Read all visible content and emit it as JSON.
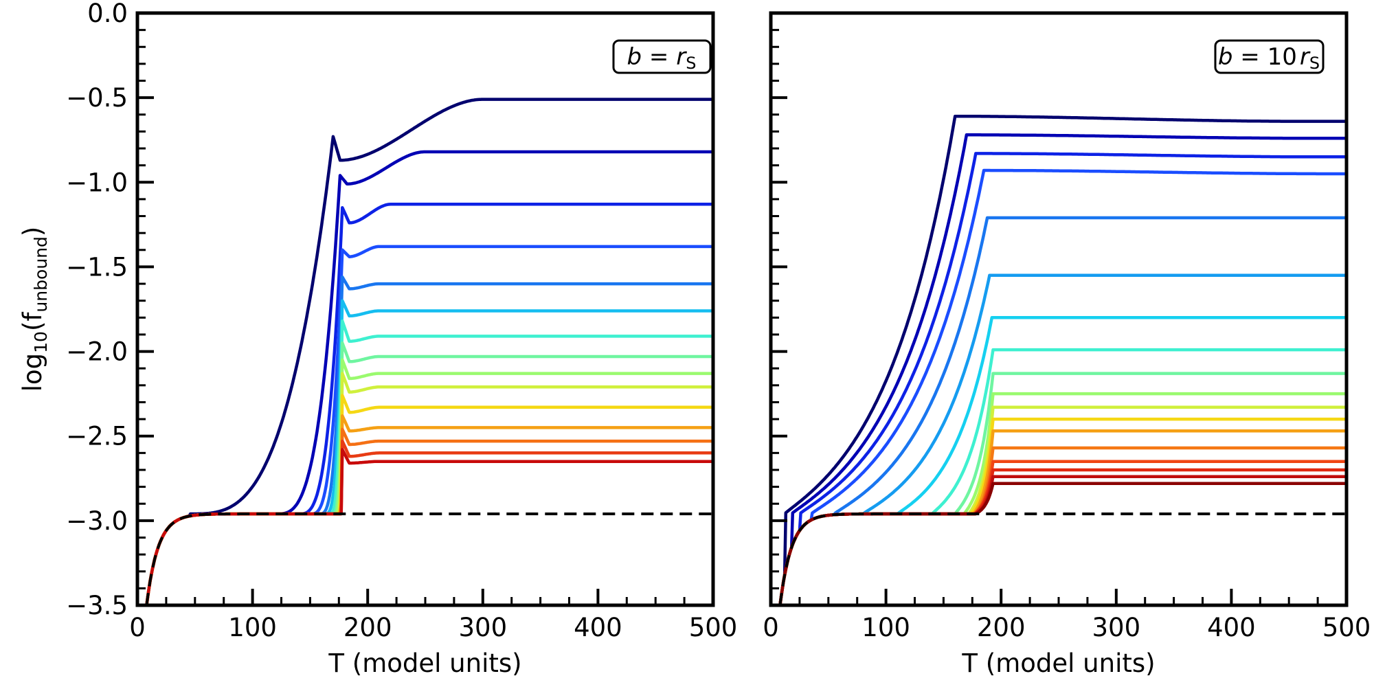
{
  "chart_data": [
    {
      "type": "line",
      "panel": "left",
      "annotation": {
        "var": "b",
        "eq": " = ",
        "coef": "",
        "sym": "r",
        "sub": "S"
      },
      "xlabel": "T (model units)",
      "ylabel": {
        "pre": "log",
        "sub1": "10",
        "mid": "(f",
        "sub2": "unbound",
        "post": ")"
      },
      "xlim": [
        0,
        500
      ],
      "ylim": [
        -3.5,
        0.0
      ],
      "xticks": [
        "0",
        "100",
        "200",
        "300",
        "400",
        "500"
      ],
      "yticks": [
        "0.0",
        "−0.5",
        "−1.0",
        "−1.5",
        "−2.0",
        "−2.5",
        "−3.0",
        "−3.5"
      ],
      "reference": {
        "name": "baseline",
        "style": "dashed",
        "color": "#000000",
        "plateau": -2.96,
        "x": [
          0,
          500
        ]
      },
      "common_rise": {
        "x0": 8,
        "y0": -3.5,
        "tau": 10
      },
      "transition_x": 178,
      "series": [
        {
          "color": "#00006e",
          "final": -0.51,
          "t0": 45,
          "peak_x": 170,
          "peak": -0.73,
          "dip": -0.87,
          "settle": 300
        },
        {
          "color": "#0000b4",
          "final": -0.82,
          "t0": 120,
          "peak_x": 176,
          "peak": -0.96,
          "dip": -1.01,
          "settle": 250
        },
        {
          "color": "#0d22e6",
          "final": -1.13,
          "t0": 140,
          "peak_x": 178,
          "peak": -1.15,
          "dip": -1.24,
          "settle": 220
        },
        {
          "color": "#1a4dff",
          "final": -1.38,
          "t0": 150,
          "peak_x": 178,
          "peak": -1.4,
          "dip": -1.44,
          "settle": 210
        },
        {
          "color": "#1976f0",
          "final": -1.6,
          "t0": 158,
          "peak_x": 178,
          "peak": -1.56,
          "dip": -1.63,
          "settle": 210
        },
        {
          "color": "#15bdf0",
          "final": -1.76,
          "t0": 163,
          "peak_x": 178,
          "peak": -1.7,
          "dip": -1.79,
          "settle": 210
        },
        {
          "color": "#3ef0d0",
          "final": -1.91,
          "t0": 167,
          "peak_x": 178,
          "peak": -1.82,
          "dip": -1.94,
          "settle": 210
        },
        {
          "color": "#6ff5a0",
          "final": -2.03,
          "t0": 170,
          "peak_x": 178,
          "peak": -1.95,
          "dip": -2.06,
          "settle": 210
        },
        {
          "color": "#9afa6e",
          "final": -2.13,
          "t0": 172,
          "peak_x": 178,
          "peak": -2.05,
          "dip": -2.16,
          "settle": 210
        },
        {
          "color": "#d0f03c",
          "final": -2.21,
          "t0": 174,
          "peak_x": 178,
          "peak": -2.13,
          "dip": -2.24,
          "settle": 210
        },
        {
          "color": "#f5d814",
          "final": -2.33,
          "t0": 175,
          "peak_x": 178,
          "peak": -2.26,
          "dip": -2.36,
          "settle": 210
        },
        {
          "color": "#f5a014",
          "final": -2.45,
          "t0": 176,
          "peak_x": 178,
          "peak": -2.38,
          "dip": -2.47,
          "settle": 210
        },
        {
          "color": "#f57014",
          "final": -2.53,
          "t0": 176,
          "peak_x": 178,
          "peak": -2.46,
          "dip": -2.55,
          "settle": 210
        },
        {
          "color": "#e83c14",
          "final": -2.6,
          "t0": 177,
          "peak_x": 178,
          "peak": -2.53,
          "dip": -2.62,
          "settle": 210
        },
        {
          "color": "#c80a0a",
          "final": -2.65,
          "t0": 177,
          "peak_x": 178,
          "peak": -2.58,
          "dip": -2.66,
          "settle": 210
        }
      ]
    },
    {
      "type": "line",
      "panel": "right",
      "annotation": {
        "var": "b",
        "eq": " = ",
        "coef": "10",
        "sym": "r",
        "sub": "S"
      },
      "xlabel": "T (model units)",
      "xlim": [
        0,
        500
      ],
      "ylim": [
        -3.5,
        0.0
      ],
      "xticks": [
        "0",
        "100",
        "200",
        "300",
        "400",
        "500"
      ],
      "reference": {
        "name": "baseline",
        "style": "dashed",
        "color": "#000000",
        "plateau": -2.96,
        "x": [
          0,
          500
        ]
      },
      "common_rise": {
        "x0": 8,
        "y0": -3.5,
        "tau": 10
      },
      "transition_x": 178,
      "series": [
        {
          "color": "#00006e",
          "t0": 12,
          "knee_x": 160,
          "knee": -0.61,
          "final": -0.64
        },
        {
          "color": "#0000b4",
          "t0": 18,
          "knee_x": 170,
          "knee": -0.72,
          "final": -0.74
        },
        {
          "color": "#0d22e6",
          "t0": 25,
          "knee_x": 178,
          "knee": -0.83,
          "final": -0.85
        },
        {
          "color": "#1a4dff",
          "t0": 35,
          "knee_x": 185,
          "knee": -0.93,
          "final": -0.95
        },
        {
          "color": "#1976f0",
          "t0": 55,
          "knee_x": 188,
          "knee": -1.21,
          "final": -1.21
        },
        {
          "color": "#159cf0",
          "t0": 80,
          "knee_x": 190,
          "knee": -1.55,
          "final": -1.55
        },
        {
          "color": "#15d0f0",
          "t0": 110,
          "knee_x": 192,
          "knee": -1.8,
          "final": -1.8
        },
        {
          "color": "#3ef0d0",
          "t0": 140,
          "knee_x": 193,
          "knee": -1.99,
          "final": -1.99
        },
        {
          "color": "#6ff5a0",
          "t0": 160,
          "knee_x": 193,
          "knee": -2.13,
          "final": -2.13
        },
        {
          "color": "#9afa6e",
          "t0": 168,
          "knee_x": 193,
          "knee": -2.25,
          "final": -2.25
        },
        {
          "color": "#d0f03c",
          "t0": 172,
          "knee_x": 193,
          "knee": -2.33,
          "final": -2.33
        },
        {
          "color": "#f5d814",
          "t0": 174,
          "knee_x": 193,
          "knee": -2.4,
          "final": -2.4
        },
        {
          "color": "#f5a014",
          "t0": 176,
          "knee_x": 193,
          "knee": -2.47,
          "final": -2.47
        },
        {
          "color": "#f57814",
          "t0": 177,
          "knee_x": 193,
          "knee": -2.57,
          "final": -2.57
        },
        {
          "color": "#f04614",
          "t0": 177,
          "knee_x": 193,
          "knee": -2.65,
          "final": -2.65
        },
        {
          "color": "#e02810",
          "t0": 177,
          "knee_x": 193,
          "knee": -2.7,
          "final": -2.7
        },
        {
          "color": "#c00c0c",
          "t0": 178,
          "knee_x": 193,
          "knee": -2.74,
          "final": -2.74
        },
        {
          "color": "#8a0000",
          "t0": 178,
          "knee_x": 193,
          "knee": -2.78,
          "final": -2.78
        }
      ]
    }
  ]
}
